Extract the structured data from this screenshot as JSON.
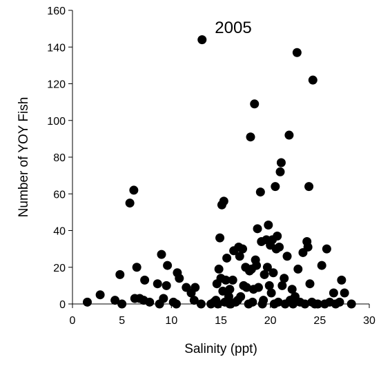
{
  "chart_data": {
    "type": "scatter",
    "annotation": "2005",
    "xlabel": "Salinity (ppt)",
    "ylabel": "Number of YOY Fish",
    "xlim": [
      0,
      30
    ],
    "ylim": [
      0,
      160
    ],
    "xticks": [
      0,
      5,
      10,
      15,
      20,
      25,
      30
    ],
    "yticks": [
      0,
      20,
      40,
      60,
      80,
      100,
      120,
      140,
      160
    ],
    "grid": false,
    "marker_color": "#000000",
    "series": [
      {
        "points": [
          [
            1.5,
            1
          ],
          [
            2.8,
            5
          ],
          [
            4.3,
            2
          ],
          [
            4.8,
            16
          ],
          [
            5.0,
            0
          ],
          [
            5.8,
            55
          ],
          [
            6.2,
            62
          ],
          [
            6.3,
            3
          ],
          [
            6.5,
            20
          ],
          [
            6.8,
            3
          ],
          [
            7.2,
            2
          ],
          [
            7.3,
            13
          ],
          [
            7.8,
            1
          ],
          [
            8.6,
            11
          ],
          [
            8.8,
            0
          ],
          [
            9.0,
            27
          ],
          [
            9.2,
            3
          ],
          [
            9.5,
            10
          ],
          [
            9.6,
            21
          ],
          [
            10.2,
            1
          ],
          [
            10.5,
            0
          ],
          [
            10.6,
            17
          ],
          [
            10.8,
            14
          ],
          [
            11.5,
            9
          ],
          [
            12.0,
            6
          ],
          [
            12.3,
            2
          ],
          [
            12.4,
            9
          ],
          [
            13.1,
            144
          ],
          [
            13.0,
            0
          ],
          [
            14.0,
            0
          ],
          [
            14.3,
            1
          ],
          [
            14.5,
            2
          ],
          [
            14.6,
            11
          ],
          [
            14.8,
            19
          ],
          [
            14.9,
            36
          ],
          [
            15.1,
            54
          ],
          [
            15.3,
            56
          ],
          [
            15.5,
            13
          ],
          [
            15.6,
            25
          ],
          [
            15.8,
            4
          ],
          [
            15.9,
            8
          ],
          [
            15.0,
            14
          ],
          [
            15.2,
            7
          ],
          [
            15.4,
            1
          ],
          [
            14.7,
            0
          ],
          [
            15.9,
            0
          ],
          [
            16.0,
            0
          ],
          [
            16.2,
            13
          ],
          [
            16.3,
            29
          ],
          [
            16.5,
            1
          ],
          [
            16.7,
            2
          ],
          [
            16.8,
            31
          ],
          [
            16.9,
            26
          ],
          [
            17.0,
            4
          ],
          [
            17.2,
            30
          ],
          [
            17.3,
            10
          ],
          [
            17.5,
            20
          ],
          [
            17.6,
            9
          ],
          [
            17.8,
            0
          ],
          [
            17.9,
            18
          ],
          [
            18.0,
            91
          ],
          [
            18.1,
            19
          ],
          [
            18.2,
            1
          ],
          [
            18.3,
            8
          ],
          [
            18.4,
            109
          ],
          [
            18.5,
            24
          ],
          [
            18.6,
            21
          ],
          [
            18.7,
            41
          ],
          [
            18.8,
            9
          ],
          [
            19.0,
            61
          ],
          [
            19.1,
            34
          ],
          [
            19.2,
            0
          ],
          [
            19.3,
            2
          ],
          [
            19.4,
            16
          ],
          [
            19.6,
            35
          ],
          [
            19.7,
            20
          ],
          [
            19.8,
            43
          ],
          [
            19.9,
            10
          ],
          [
            20.0,
            32
          ],
          [
            20.1,
            6
          ],
          [
            20.2,
            35
          ],
          [
            20.3,
            17
          ],
          [
            20.4,
            0
          ],
          [
            20.5,
            64
          ],
          [
            20.6,
            30
          ],
          [
            20.7,
            37
          ],
          [
            20.8,
            1
          ],
          [
            20.9,
            31
          ],
          [
            21.0,
            72
          ],
          [
            21.1,
            77
          ],
          [
            21.2,
            10
          ],
          [
            21.4,
            14
          ],
          [
            21.5,
            0
          ],
          [
            21.7,
            26
          ],
          [
            21.9,
            92
          ],
          [
            22.0,
            2
          ],
          [
            22.2,
            8
          ],
          [
            22.3,
            0
          ],
          [
            22.5,
            4
          ],
          [
            22.7,
            137
          ],
          [
            22.8,
            19
          ],
          [
            23.0,
            1
          ],
          [
            23.3,
            28
          ],
          [
            23.5,
            0
          ],
          [
            23.7,
            34
          ],
          [
            23.8,
            31
          ],
          [
            23.9,
            64
          ],
          [
            24.0,
            11
          ],
          [
            24.2,
            1
          ],
          [
            24.3,
            122
          ],
          [
            24.5,
            0
          ],
          [
            24.8,
            0
          ],
          [
            25.2,
            21
          ],
          [
            25.5,
            0
          ],
          [
            25.7,
            30
          ],
          [
            26.0,
            1
          ],
          [
            26.4,
            6
          ],
          [
            26.6,
            0
          ],
          [
            27.0,
            1
          ],
          [
            27.2,
            13
          ],
          [
            27.5,
            6
          ],
          [
            28.2,
            0
          ]
        ]
      }
    ]
  }
}
